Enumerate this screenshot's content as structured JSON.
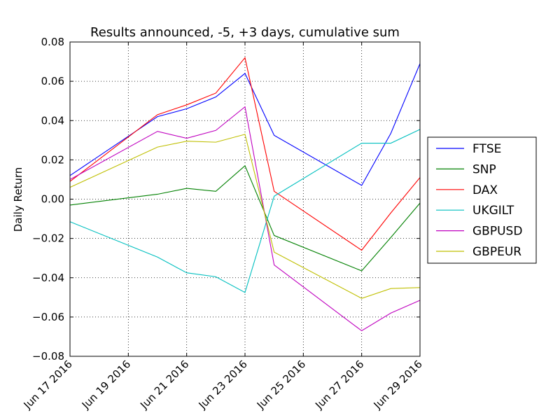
{
  "chart_data": {
    "type": "line",
    "title": "Results announced, -5, +3 days, cumulative sum",
    "xlabel": "",
    "ylabel": "Daily Return",
    "ylim": [
      -0.08,
      0.08
    ],
    "xlim": [
      "2016-06-17",
      "2016-06-29"
    ],
    "grid": true,
    "legend_position": "right",
    "x": [
      "2016-06-17",
      "2016-06-20",
      "2016-06-21",
      "2016-06-22",
      "2016-06-23",
      "2016-06-24",
      "2016-06-27",
      "2016-06-28",
      "2016-06-29"
    ],
    "x_tick_labels": [
      "Jun 17 2016",
      "Jun 19 2016",
      "Jun 21 2016",
      "Jun 23 2016",
      "Jun 25 2016",
      "Jun 27 2016",
      "Jun 29 2016"
    ],
    "x_tick_dates": [
      "2016-06-17",
      "2016-06-19",
      "2016-06-21",
      "2016-06-23",
      "2016-06-25",
      "2016-06-27",
      "2016-06-29"
    ],
    "y_tick_labels": [
      "0.08",
      "0.06",
      "0.04",
      "0.02",
      "0.00",
      "−0.02",
      "−0.04",
      "−0.06",
      "−0.08"
    ],
    "y_tick_values": [
      0.08,
      0.06,
      0.04,
      0.02,
      0.0,
      -0.02,
      -0.04,
      -0.06,
      -0.08
    ],
    "series": [
      {
        "name": "FTSE",
        "color": "#0000ff",
        "values": [
          0.012,
          0.042,
          0.046,
          0.052,
          0.064,
          0.0325,
          0.007,
          0.0335,
          0.069
        ]
      },
      {
        "name": "SNP",
        "color": "#008000",
        "values": [
          -0.003,
          0.0025,
          0.0055,
          0.004,
          0.017,
          -0.0185,
          -0.0365,
          -0.0195,
          -0.002
        ]
      },
      {
        "name": "DAX",
        "color": "#ff0000",
        "values": [
          0.009,
          0.043,
          0.048,
          0.054,
          0.072,
          0.004,
          -0.026,
          -0.007,
          0.011
        ]
      },
      {
        "name": "UKGILT",
        "color": "#00bfbf",
        "values": [
          -0.0115,
          -0.0295,
          -0.0375,
          -0.0395,
          -0.0475,
          0.0015,
          0.0285,
          0.0285,
          0.0355
        ]
      },
      {
        "name": "GBPUSD",
        "color": "#bf00bf",
        "values": [
          0.01,
          0.0345,
          0.031,
          0.035,
          0.047,
          -0.0335,
          -0.067,
          -0.058,
          -0.0515
        ]
      },
      {
        "name": "GBPEUR",
        "color": "#bfbf00",
        "values": [
          0.006,
          0.0265,
          0.0295,
          0.029,
          0.033,
          -0.027,
          -0.0505,
          -0.0455,
          -0.045
        ]
      }
    ]
  }
}
